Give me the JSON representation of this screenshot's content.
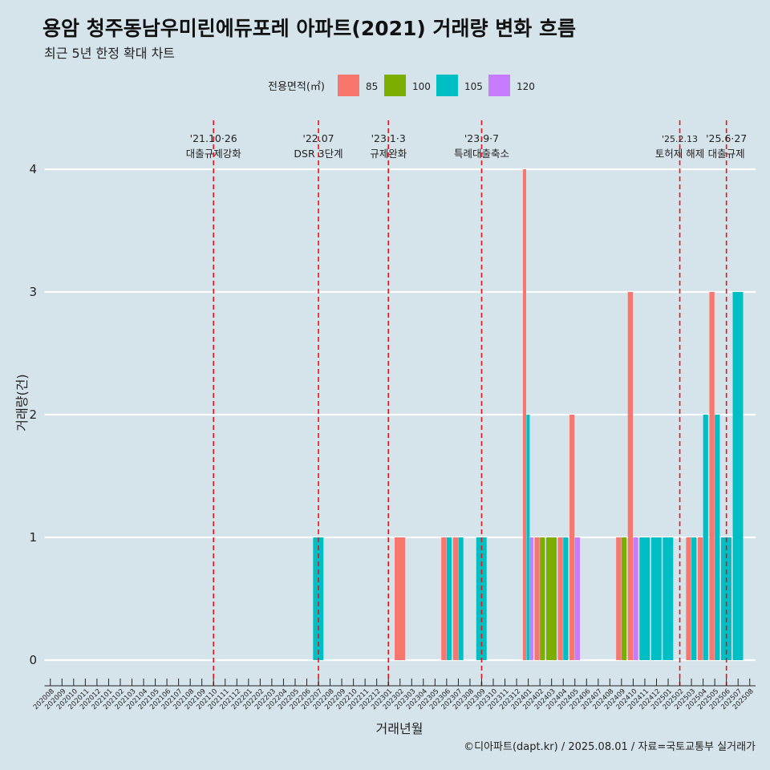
{
  "header": {
    "title": "용암 청주동남우미린에듀포레 아파트(2021) 거래량 변화 흐름",
    "subtitle": "최근 5년 한정 확대 차트"
  },
  "caption": "©디아파트(dapt.kr) / 2025.08.01 / 자료=국토교통부 실거래가",
  "chart_data": {
    "type": "bar",
    "xlabel": "거래년월",
    "ylabel": "거래량(건)",
    "ylim": [
      0,
      4
    ],
    "yticks": [
      0,
      1,
      2,
      3,
      4
    ],
    "grid": true,
    "legend": {
      "title": "전용면적(㎡)",
      "placement": "top",
      "entries": [
        {
          "label": "85",
          "color": "#F8766D"
        },
        {
          "label": "100",
          "color": "#7CAE00"
        },
        {
          "label": "105",
          "color": "#00BFC4"
        },
        {
          "label": "120",
          "color": "#C77CFF"
        }
      ]
    },
    "categories": [
      "202008",
      "202009",
      "202010",
      "202011",
      "202012",
      "202101",
      "202102",
      "202103",
      "202104",
      "202105",
      "202106",
      "202107",
      "202108",
      "202109",
      "202110",
      "202111",
      "202112",
      "202201",
      "202202",
      "202203",
      "202204",
      "202205",
      "202206",
      "202207",
      "202208",
      "202209",
      "202210",
      "202211",
      "202212",
      "202301",
      "202302",
      "202303",
      "202304",
      "202305",
      "202306",
      "202307",
      "202308",
      "202309",
      "202310",
      "202311",
      "202312",
      "202401",
      "202402",
      "202403",
      "202404",
      "202405",
      "202406",
      "202407",
      "202408",
      "202409",
      "202410",
      "202411",
      "202412",
      "202501",
      "202502",
      "202503",
      "202504",
      "202505",
      "202506",
      "202507",
      "202508"
    ],
    "series": [
      {
        "name": "85",
        "values": {
          "202302": 1,
          "202306": 1,
          "202307": 1,
          "202401": 4,
          "202402": 1,
          "202404": 1,
          "202405": 2,
          "202409": 1,
          "202410": 3,
          "202503": 1,
          "202504": 1,
          "202505": 3
        }
      },
      {
        "name": "100",
        "values": {
          "202402": 1,
          "202403": 1,
          "202409": 1
        }
      },
      {
        "name": "105",
        "values": {
          "202207": 1,
          "202306": 1,
          "202307": 1,
          "202309": 1,
          "202401": 2,
          "202404": 1,
          "202411": 1,
          "202412": 1,
          "202501": 1,
          "202503": 1,
          "202504": 2,
          "202505": 2,
          "202506": 1,
          "202507": 3
        }
      },
      {
        "name": "120",
        "values": {
          "202401": 1,
          "202405": 1,
          "202410": 1
        }
      }
    ],
    "events": [
      {
        "date": "202110",
        "line1": "'21.10·26",
        "line2": "대출규제강화"
      },
      {
        "date": "202207",
        "line1": "'22.07",
        "line2": "DSR 3단계"
      },
      {
        "date": "202301",
        "line1": "'23.1·3",
        "line2": "규제완화"
      },
      {
        "date": "202309",
        "line1": "'23.9·7",
        "line2": "특례대출축소"
      },
      {
        "date": "202502",
        "line1": "'25.2.13",
        "line2": "토허제 해제"
      },
      {
        "date": "202506",
        "line1": "'25.6·27",
        "line2": "대출규제"
      }
    ]
  }
}
